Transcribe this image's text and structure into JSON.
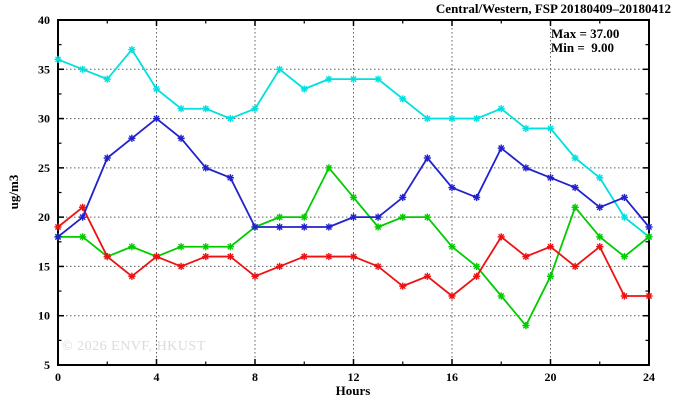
{
  "chart_data": {
    "type": "line",
    "title": "Central/Western, FSP 20180409–20180412",
    "xlabel": "Hours",
    "ylabel": "ug/m3",
    "xlim": [
      0,
      24
    ],
    "ylim": [
      5,
      40
    ],
    "x_ticks": [
      0,
      4,
      8,
      12,
      16,
      20,
      24
    ],
    "y_ticks": [
      5,
      10,
      15,
      20,
      25,
      30,
      35,
      40
    ],
    "x_minor_ticks": [
      2,
      6,
      10,
      14,
      18,
      22
    ],
    "y_minor_ticks": [
      7.5,
      12.5,
      17.5,
      22.5,
      27.5,
      32.5,
      37.5
    ],
    "grid": true,
    "legend": "none",
    "x": [
      0,
      1,
      2,
      3,
      4,
      5,
      6,
      7,
      8,
      9,
      10,
      11,
      12,
      13,
      14,
      15,
      16,
      17,
      18,
      19,
      20,
      21,
      22,
      23,
      24
    ],
    "series": [
      {
        "name": "series-cyan",
        "color": "#00e0e0",
        "values": [
          36,
          35,
          34,
          37,
          33,
          31,
          31,
          30,
          31,
          35,
          33,
          34,
          34,
          34,
          32,
          30,
          30,
          30,
          31,
          29,
          29,
          26,
          24,
          20,
          18
        ]
      },
      {
        "name": "series-green",
        "color": "#00cc00",
        "values": [
          18,
          18,
          16,
          17,
          16,
          17,
          17,
          17,
          19,
          20,
          20,
          25,
          22,
          19,
          20,
          20,
          17,
          15,
          12,
          9,
          14,
          21,
          18,
          16,
          18
        ]
      },
      {
        "name": "series-red",
        "color": "#ee1111",
        "values": [
          19,
          21,
          16,
          14,
          16,
          15,
          16,
          16,
          14,
          15,
          16,
          16,
          16,
          15,
          13,
          14,
          12,
          14,
          18,
          16,
          17,
          15,
          17,
          12,
          12
        ]
      },
      {
        "name": "series-blue",
        "color": "#2222cc",
        "values": [
          18,
          20,
          26,
          28,
          30,
          28,
          25,
          24,
          19,
          19,
          19,
          19,
          20,
          20,
          22,
          26,
          23,
          22,
          27,
          25,
          24,
          23,
          21,
          22,
          19
        ]
      }
    ],
    "annotations": {
      "max_label": "Max = 37.00",
      "min_label": "Min =  9.00"
    },
    "watermark": "© 2026 ENVF, HKUST",
    "axis_color": "#000000",
    "grid_color": "#606060"
  }
}
